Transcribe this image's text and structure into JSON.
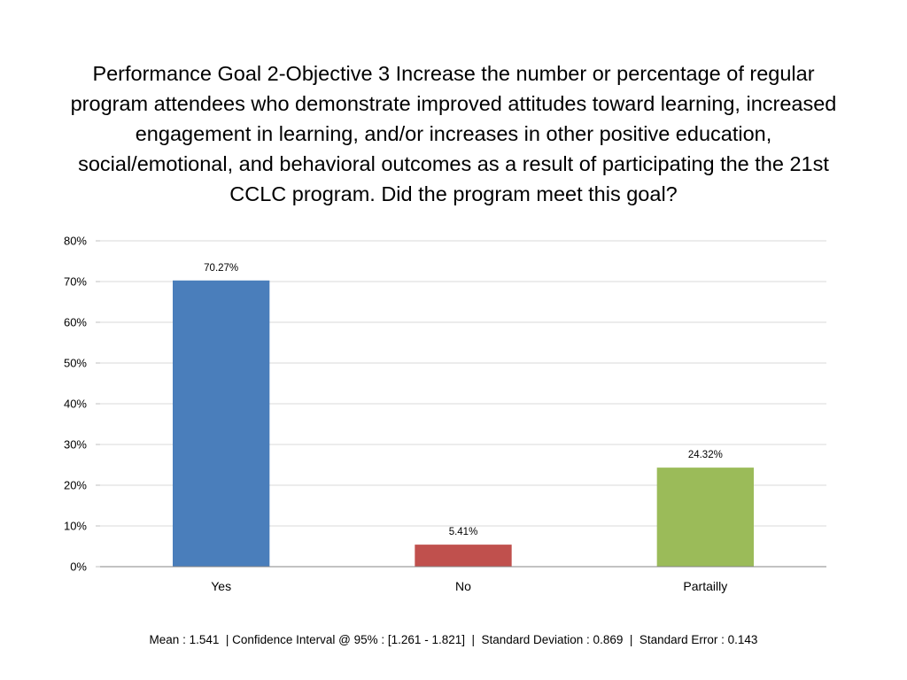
{
  "chart_data": {
    "type": "bar",
    "title": "Performance Goal 2-Objective 3 Increase the number or percentage of regular program attendees who demonstrate improved attitudes toward learning, increased engagement in learning, and/or increases in other positive education, social/emotional, and behavioral outcomes as a result of participating the the 21st CCLC program. Did the program meet this goal?",
    "categories": [
      "Yes",
      "No",
      "Partailly"
    ],
    "values": [
      70.27,
      5.41,
      24.32
    ],
    "data_labels": [
      "70.27%",
      "5.41%",
      "24.32%"
    ],
    "colors": [
      "#4A7EBB",
      "#C0504D",
      "#9BBB59"
    ],
    "xlabel": "",
    "ylabel": "",
    "ylim": [
      0,
      80
    ],
    "yticks": [
      0,
      10,
      20,
      30,
      40,
      50,
      60,
      70,
      80
    ],
    "ytick_labels": [
      "0%",
      "10%",
      "20%",
      "30%",
      "40%",
      "50%",
      "60%",
      "70%",
      "80%"
    ],
    "grid": true,
    "legend": "none"
  },
  "footer": {
    "stats": "Mean : 1.541  | Confidence Interval @ 95% : [1.261 - 1.821]  |  Standard Deviation : 0.869  |  Standard Error : 0.143"
  }
}
